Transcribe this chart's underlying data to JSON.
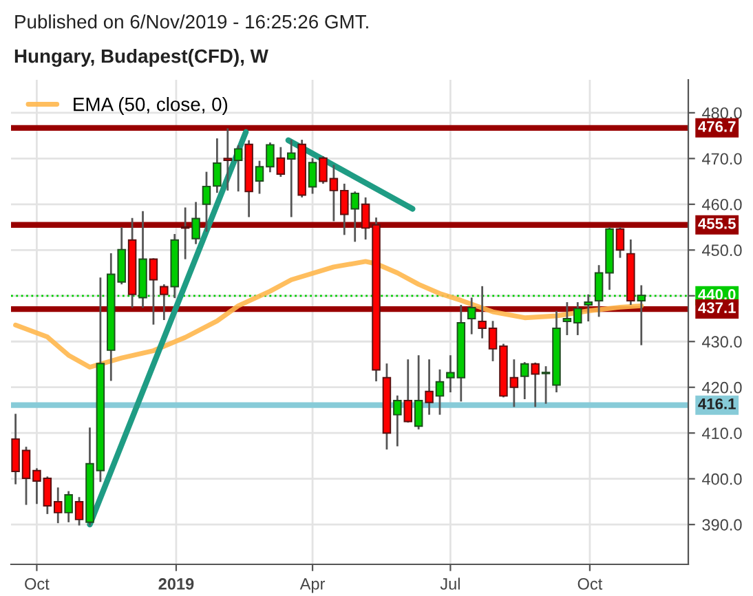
{
  "chart_data": {
    "type": "candlestick",
    "title": "Hungary, Budapest(CFD), W",
    "annotations": [
      "Published on 6/Nov/2019 - 16:25:26 GMT."
    ],
    "x": [
      "2018-09-17",
      "2018-09-24",
      "2018-10-01",
      "2018-10-08",
      "2018-10-15",
      "2018-10-22",
      "2018-10-29",
      "2018-11-05",
      "2018-11-12",
      "2018-11-19",
      "2018-11-26",
      "2018-12-03",
      "2018-12-10",
      "2018-12-17",
      "2018-12-24",
      "2018-12-31",
      "2019-01-07",
      "2019-01-14",
      "2019-01-21",
      "2019-01-28",
      "2019-02-04",
      "2019-02-11",
      "2019-02-18",
      "2019-02-25",
      "2019-03-04",
      "2019-03-11",
      "2019-03-18",
      "2019-03-25",
      "2019-04-01",
      "2019-04-08",
      "2019-04-15",
      "2019-04-22",
      "2019-04-29",
      "2019-05-06",
      "2019-05-13",
      "2019-05-20",
      "2019-05-27",
      "2019-06-03",
      "2019-06-10",
      "2019-06-17",
      "2019-06-24",
      "2019-07-01",
      "2019-07-08",
      "2019-07-15",
      "2019-07-22",
      "2019-07-29",
      "2019-08-05",
      "2019-08-12",
      "2019-08-19",
      "2019-08-26",
      "2019-09-02",
      "2019-09-09",
      "2019-09-16",
      "2019-09-23",
      "2019-09-30",
      "2019-10-07",
      "2019-10-14",
      "2019-10-21",
      "2019-10-28",
      "2019-11-04"
    ],
    "ohlc": [
      [
        408.7,
        414.2,
        398.8,
        401.6
      ],
      [
        406.2,
        407.0,
        394.3,
        400.1
      ],
      [
        401.8,
        402.3,
        394.5,
        399.5
      ],
      [
        400.1,
        400.5,
        392.3,
        394.1
      ],
      [
        395.0,
        398.1,
        390.3,
        392.6
      ],
      [
        392.6,
        397.3,
        390.5,
        396.5
      ],
      [
        395.0,
        396.0,
        389.8,
        391.1
      ],
      [
        390.5,
        411.2,
        389.8,
        403.3
      ],
      [
        401.8,
        444.0,
        399.3,
        425.2
      ],
      [
        428.1,
        449.3,
        421.4,
        444.7
      ],
      [
        443.0,
        455.0,
        442.5,
        450.1
      ],
      [
        452.2,
        457.0,
        437.4,
        440.3
      ],
      [
        439.6,
        458.5,
        437.4,
        448.0
      ],
      [
        448.0,
        448.2,
        433.7,
        443.5
      ],
      [
        442.0,
        442.5,
        434.7,
        440.3
      ],
      [
        442.0,
        453.5,
        439.5,
        452.2
      ],
      [
        455.0,
        459.3,
        448.0,
        454.8
      ],
      [
        452.5,
        460.5,
        451.3,
        456.9
      ],
      [
        460.0,
        467.1,
        454.0,
        463.9
      ],
      [
        464.0,
        474.4,
        462.5,
        469.0
      ],
      [
        470.0,
        476.6,
        463.0,
        469.6
      ],
      [
        469.6,
        472.9,
        462.8,
        472.1
      ],
      [
        473.1,
        474.0,
        457.2,
        462.8
      ],
      [
        465.1,
        469.5,
        462.3,
        468.2
      ],
      [
        468.2,
        473.5,
        467.0,
        473.0
      ],
      [
        470.1,
        472.5,
        466.0,
        466.6
      ],
      [
        469.9,
        474.1,
        457.2,
        471.2
      ],
      [
        473.1,
        474.1,
        461.5,
        462.0
      ],
      [
        463.8,
        470.1,
        462.3,
        469.1
      ],
      [
        470.1,
        470.5,
        464.5,
        465.0
      ],
      [
        465.6,
        468.6,
        456.3,
        463.0
      ],
      [
        463.0,
        464.5,
        453.3,
        457.8
      ],
      [
        459.0,
        462.8,
        451.8,
        462.4
      ],
      [
        460.0,
        461.5,
        452.3,
        454.8
      ],
      [
        455.5,
        457.1,
        421.3,
        423.8
      ],
      [
        422.1,
        425.2,
        406.4,
        410.0
      ],
      [
        414.0,
        418.2,
        407.1,
        417.1
      ],
      [
        417.1,
        426.1,
        412.3,
        412.5
      ],
      [
        411.5,
        427.0,
        410.8,
        417.1
      ],
      [
        419.1,
        426.1,
        414.0,
        416.7
      ],
      [
        418.1,
        423.9,
        414.0,
        421.2
      ],
      [
        422.1,
        427.0,
        418.9,
        423.2
      ],
      [
        422.1,
        438.0,
        416.9,
        434.1
      ],
      [
        435.0,
        439.6,
        431.6,
        437.4
      ],
      [
        434.4,
        442.1,
        430.7,
        432.9
      ],
      [
        432.9,
        434.5,
        425.7,
        428.4
      ],
      [
        429.0,
        429.5,
        417.8,
        418.1
      ],
      [
        422.1,
        426.1,
        415.7,
        420.0
      ],
      [
        422.4,
        425.5,
        417.4,
        425.1
      ],
      [
        425.1,
        425.4,
        415.7,
        422.9
      ],
      [
        423.0,
        424.6,
        416.4,
        423.2
      ],
      [
        420.5,
        436.7,
        418.9,
        432.9
      ],
      [
        434.4,
        438.6,
        431.4,
        435.0
      ],
      [
        434.1,
        438.6,
        431.4,
        437.2
      ],
      [
        438.0,
        440.3,
        434.4,
        438.6
      ],
      [
        438.9,
        446.7,
        435.4,
        445.0
      ],
      [
        445.0,
        455.0,
        441.3,
        454.6
      ],
      [
        454.6,
        455.0,
        448.3,
        450.0
      ],
      [
        449.2,
        452.3,
        438.0,
        438.9
      ],
      [
        438.9,
        442.3,
        429.2,
        440.1
      ]
    ],
    "colors": [
      "#ff0000",
      "#ff0000",
      "#ff0000",
      "#ff0000",
      "#ff0000",
      "#00cc00",
      "#ff0000",
      "#00cc00",
      "#00cc00",
      "#00cc00",
      "#00cc00",
      "#ff0000",
      "#00cc00",
      "#ff0000",
      "#ff0000",
      "#00cc00",
      "#ff0000",
      "#00cc00",
      "#00cc00",
      "#00cc00",
      "#ff0000",
      "#00cc00",
      "#ff0000",
      "#00cc00",
      "#00cc00",
      "#ff0000",
      "#00cc00",
      "#ff0000",
      "#00cc00",
      "#ff0000",
      "#ff0000",
      "#ff0000",
      "#00cc00",
      "#ff0000",
      "#ff0000",
      "#ff0000",
      "#00cc00",
      "#ff0000",
      "#00cc00",
      "#ff0000",
      "#00cc00",
      "#00cc00",
      "#00cc00",
      "#00cc00",
      "#ff0000",
      "#ff0000",
      "#ff0000",
      "#ff0000",
      "#00cc00",
      "#ff0000",
      "#00cc00",
      "#00cc00",
      "#00cc00",
      "#00cc00",
      "#00cc00",
      "#00cc00",
      "#00cc00",
      "#ff0000",
      "#ff0000",
      "#00cc00"
    ],
    "series": [
      {
        "name": "EMA (50, close, 0)",
        "type": "line",
        "color": "#ffb74d",
        "x": [
          "2018-09-17",
          "2018-10-08",
          "2018-10-22",
          "2018-11-05",
          "2018-11-26",
          "2018-12-17",
          "2019-01-07",
          "2019-01-28",
          "2019-02-11",
          "2019-03-04",
          "2019-03-18",
          "2019-04-15",
          "2019-05-06",
          "2019-05-13",
          "2019-05-27",
          "2019-06-10",
          "2019-06-24",
          "2019-07-08",
          "2019-07-29",
          "2019-08-19",
          "2019-09-09",
          "2019-09-30",
          "2019-10-21",
          "2019-11-04"
        ],
        "values": [
          433.6,
          431.0,
          427.0,
          424.4,
          426.4,
          428.0,
          430.9,
          434.5,
          437.8,
          441.0,
          443.5,
          446.3,
          447.5,
          447.0,
          445.0,
          442.5,
          440.5,
          439.0,
          436.5,
          435.2,
          435.6,
          436.7,
          437.5,
          437.8
        ]
      },
      {
        "type": "line",
        "color": "#1f9c84",
        "x": [
          "2018-11-05",
          "2019-02-16"
        ],
        "values": [
          390.0,
          475.8
        ]
      },
      {
        "type": "line",
        "color": "#1f9c84",
        "x": [
          "2019-03-16",
          "2019-06-06"
        ],
        "values": [
          474.0,
          459.0
        ]
      }
    ],
    "ref_lines": [
      {
        "axis": "y",
        "value": 476.7,
        "label": "476.7",
        "color": "#990000",
        "line_style": "solid"
      },
      {
        "axis": "y",
        "value": 455.5,
        "label": "455.5",
        "color": "#990000",
        "line_style": "solid"
      },
      {
        "axis": "y",
        "value": 440.0,
        "label": "440.0",
        "color": "#00cc00",
        "line_style": "dotted"
      },
      {
        "axis": "y",
        "value": 437.1,
        "label": "437.1",
        "color": "#990000",
        "line_style": "solid"
      },
      {
        "axis": "y",
        "value": 416.1,
        "label": "416.1",
        "color": "#87cbd8",
        "line_style": "solid"
      }
    ],
    "xlim": [
      "2018-09-14",
      "2019-12-05"
    ],
    "xticks": [
      {
        "value": "2018-10-01",
        "label": "Oct"
      },
      {
        "value": "2019-01-01",
        "label": "2019"
      },
      {
        "value": "2019-04-01",
        "label": "Apr"
      },
      {
        "value": "2019-07-01",
        "label": "Jul"
      },
      {
        "value": "2019-10-01",
        "label": "Oct"
      }
    ],
    "ylim": [
      381.3,
      487.2
    ],
    "yticks": [
      {
        "value": 390,
        "label": "390.0"
      },
      {
        "value": 400,
        "label": "400.0"
      },
      {
        "value": 410,
        "label": "410.0"
      },
      {
        "value": 420,
        "label": "420.0"
      },
      {
        "value": 430,
        "label": "430.0"
      },
      {
        "value": 440,
        "label": null
      },
      {
        "value": 450,
        "label": "450.0"
      },
      {
        "value": 460,
        "label": "460.0"
      },
      {
        "value": 470,
        "label": "470.0"
      },
      {
        "value": 480,
        "label": "480.0"
      }
    ],
    "grid": true,
    "legend": "top left",
    "marker": "none"
  }
}
